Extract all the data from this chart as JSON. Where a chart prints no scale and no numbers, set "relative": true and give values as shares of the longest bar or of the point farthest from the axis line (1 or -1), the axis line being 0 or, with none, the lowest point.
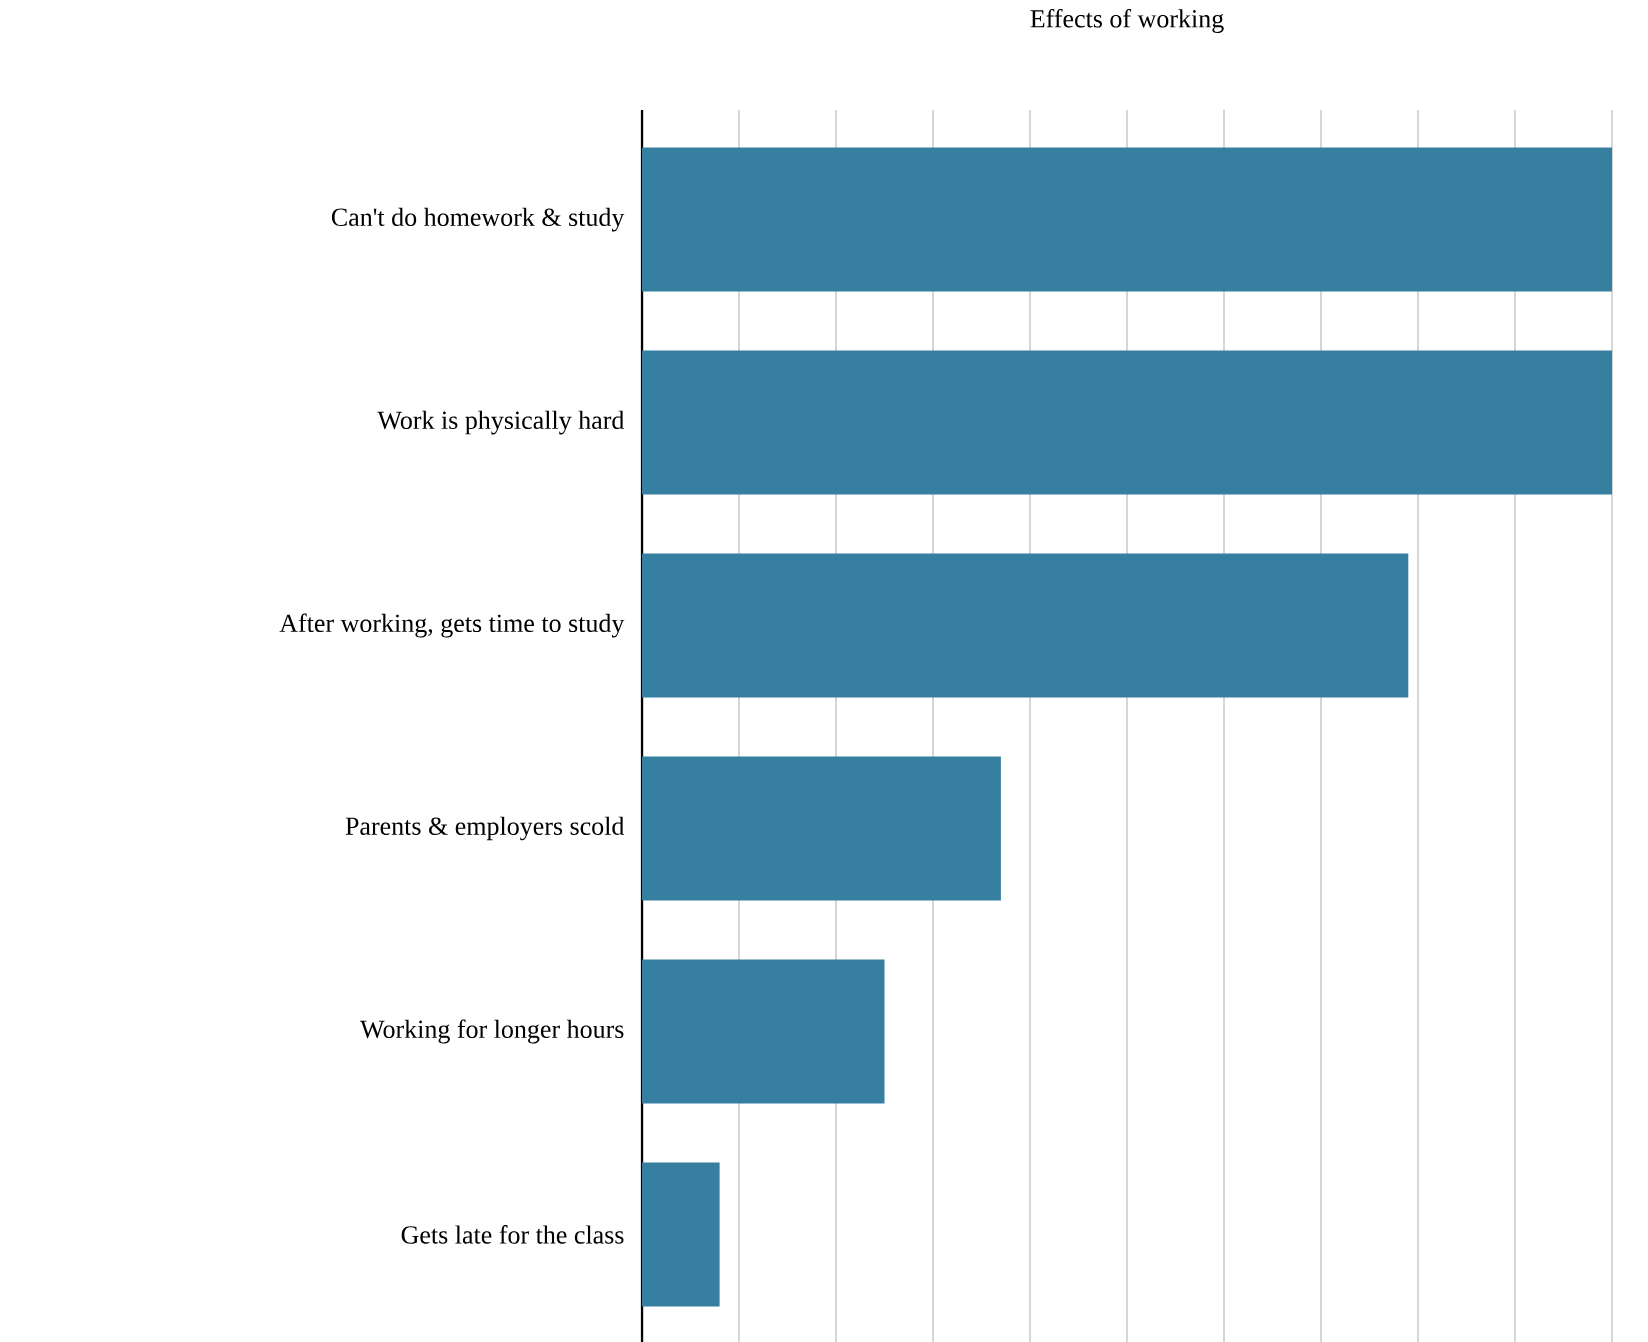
{
  "chart_data": {
    "type": "bar",
    "orientation": "horizontal",
    "relative": true,
    "grid": "x",
    "title": "Effects of working",
    "categories": [
      "Can't do homework & study",
      "Work is physically hard",
      "After working, gets time to study",
      "Parents & employers scold",
      "Working for longer hours",
      "Gets late for the class"
    ],
    "values": [
      1,
      1,
      0.79,
      0.37,
      0.25,
      0.08
    ],
    "color": "#367fa1"
  }
}
